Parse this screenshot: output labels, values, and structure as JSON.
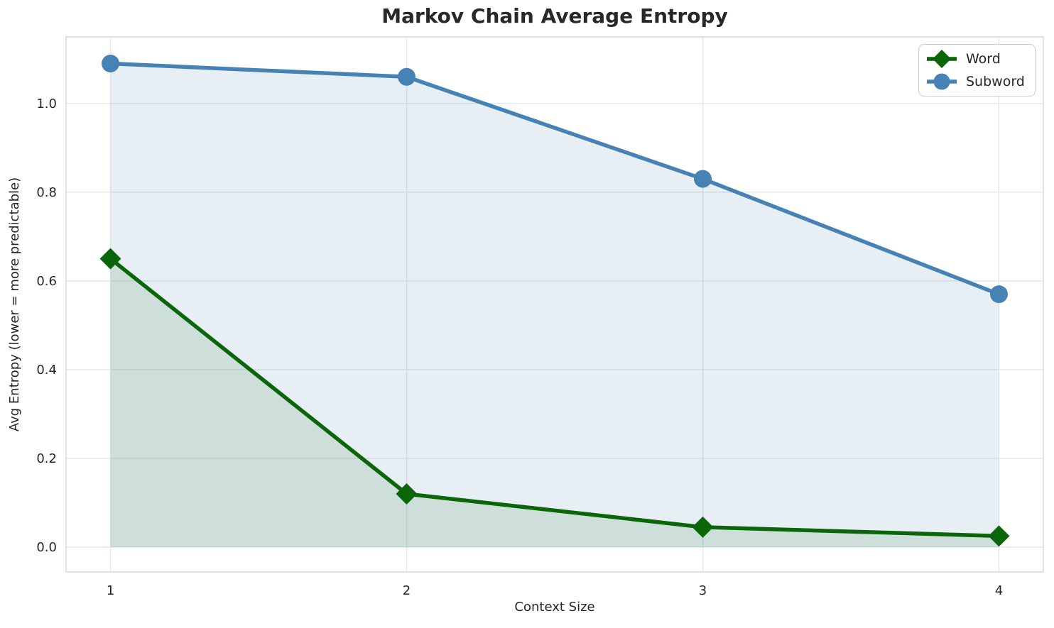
{
  "chart_data": {
    "type": "line",
    "title": "Markov Chain Average Entropy",
    "xlabel": "Context Size",
    "ylabel": "Avg Entropy (lower = more predictable)",
    "x": [
      1,
      2,
      3,
      4
    ],
    "series": [
      {
        "name": "Word",
        "values": [
          0.65,
          0.12,
          0.045,
          0.025
        ],
        "color": "#0a6609",
        "marker": "diamond",
        "fill_opacity": 0.11
      },
      {
        "name": "Subword",
        "values": [
          1.09,
          1.06,
          0.83,
          0.57
        ],
        "color": "#4682b4",
        "marker": "circle",
        "fill_opacity": 0.13
      }
    ],
    "fill_to_zero": true,
    "xlim": [
      0.85,
      4.15
    ],
    "ylim": [
      -0.056,
      1.15
    ],
    "xtick_labels": [
      "1",
      "2",
      "3",
      "4"
    ],
    "ytick_values": [
      0.0,
      0.2,
      0.4,
      0.6,
      0.8,
      1.0
    ],
    "ytick_labels": [
      "0.0",
      "0.2",
      "0.4",
      "0.6",
      "0.8",
      "1.0"
    ],
    "grid": true,
    "grid_color": "#e7e7e7",
    "spine_color": "#d9d9d9",
    "legend_position": "top-right"
  }
}
